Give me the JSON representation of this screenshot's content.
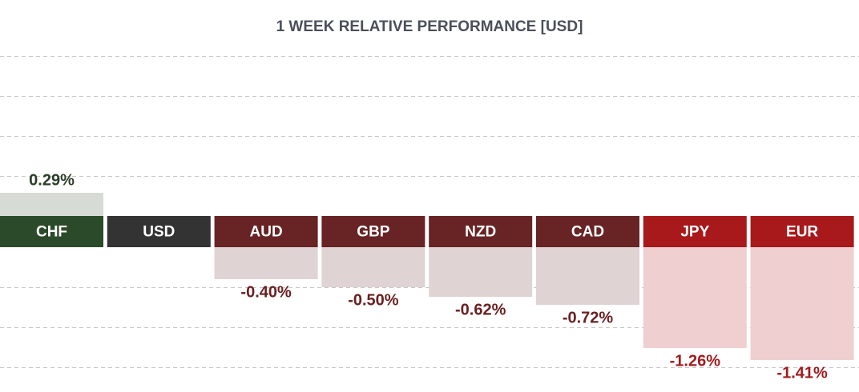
{
  "chart_data": {
    "type": "bar",
    "title": "1 WEEK RELATIVE PERFORMANCE  [USD]",
    "categories": [
      "CHF",
      "USD",
      "AUD",
      "GBP",
      "NZD",
      "CAD",
      "JPY",
      "EUR"
    ],
    "values": [
      0.29,
      0,
      -0.4,
      -0.5,
      -0.62,
      -0.72,
      -1.26,
      -1.41
    ],
    "value_labels": [
      "0.29%",
      null,
      "-0.40%",
      "-0.50%",
      "-0.62%",
      "-0.72%",
      "-1.26%",
      "-1.41%"
    ],
    "category_colors": [
      "#2b4a29",
      "#333333",
      "#682325",
      "#682325",
      "#682325",
      "#682325",
      "#a8191b",
      "#a8191b"
    ],
    "bar_colors": [
      "#d6dbd5",
      "#d6dbd5",
      "#dfd3d3",
      "#dfd3d3",
      "#dfd3d3",
      "#dfd3d3",
      "#efcfd0",
      "#efcfd0"
    ],
    "label_colors": [
      "#2b3d29",
      "#333333",
      "#6a2022",
      "#6a2022",
      "#6a2022",
      "#6a2022",
      "#a11c1e",
      "#a11c1e"
    ],
    "ylim": [
      -1.5,
      2.0
    ],
    "yticks": [
      -1.5,
      -1,
      -0.5,
      0.5,
      1,
      1.5,
      2
    ],
    "grid": true
  }
}
